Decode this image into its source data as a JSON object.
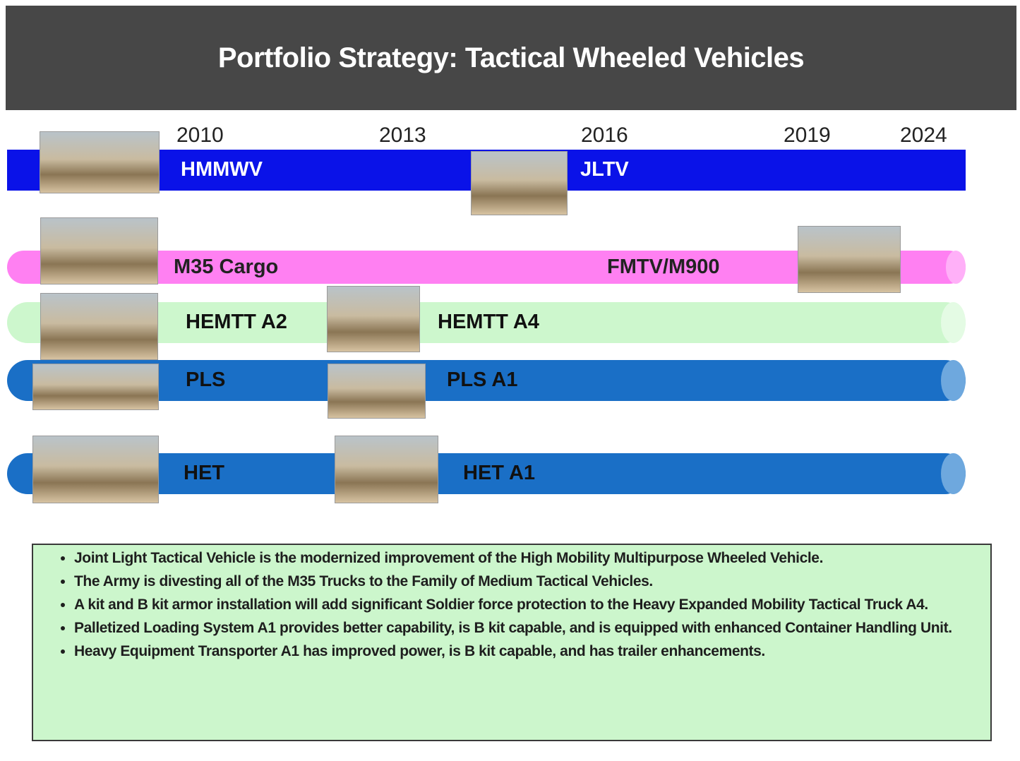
{
  "header": {
    "title": "Portfolio Strategy: Tactical Wheeled Vehicles"
  },
  "years": [
    "2010",
    "2013",
    "2016",
    "2019",
    "2024"
  ],
  "rows": [
    {
      "labels": [
        "HMMWV",
        "JLTV"
      ]
    },
    {
      "labels": [
        "M35 Cargo",
        "FMTV/M900"
      ]
    },
    {
      "labels": [
        "HEMTT A2",
        "HEMTT A4"
      ]
    },
    {
      "labels": [
        "PLS",
        "PLS A1"
      ]
    },
    {
      "labels": [
        "HET",
        "HET A1"
      ]
    }
  ],
  "bullets": [
    "Joint Light Tactical Vehicle is the modernized improvement of the High Mobility Multipurpose Wheeled Vehicle.",
    "The Army is divesting all of the M35 Trucks to the Family of Medium Tactical Vehicles.",
    "A kit and B kit armor installation will add significant Soldier force protection to the Heavy Expanded Mobility Tactical Truck A4.",
    "Palletized Loading System A1 provides better capability, is B kit capable, and is equipped with enhanced Container Handling Unit.",
    "Heavy Equipment Transporter A1 has improved power, is B kit capable, and has trailer enhancements."
  ]
}
